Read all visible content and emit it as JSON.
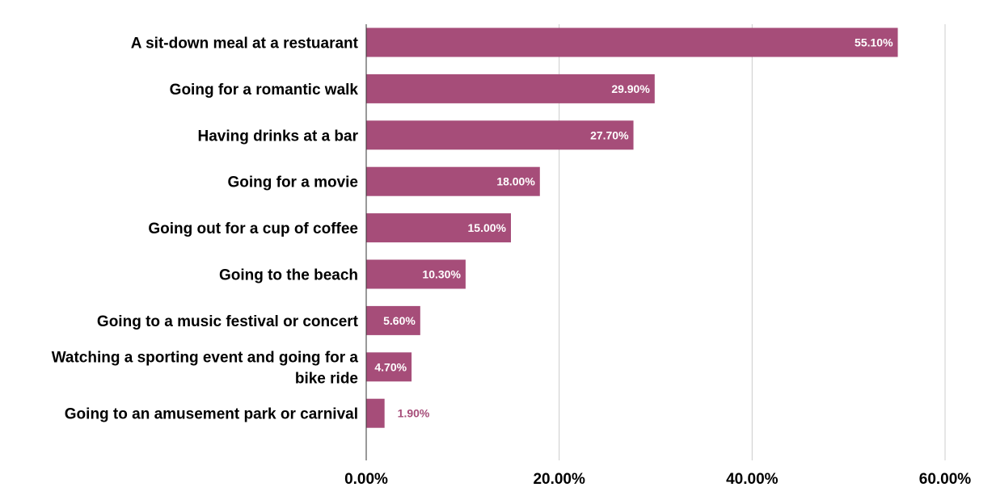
{
  "chart_data": {
    "type": "bar",
    "orientation": "horizontal",
    "categories": [
      "A sit-down meal at a restuarant",
      "Going for a romantic walk",
      "Having drinks at a bar",
      "Going for a movie",
      "Going out for a cup of coffee",
      "Going to the beach",
      "Going to a music festival or concert",
      "Watching a sporting event and going for a bike ride",
      "Going to an amusement park or carnival"
    ],
    "category_lines": [
      [
        "A sit-down meal at a restuarant"
      ],
      [
        "Going for a romantic walk"
      ],
      [
        "Having drinks at a bar"
      ],
      [
        "Going for a movie"
      ],
      [
        "Going out for a cup of coffee"
      ],
      [
        "Going to the beach"
      ],
      [
        "Going to a music festival or concert"
      ],
      [
        "Watching a sporting event and going for a",
        "bike ride"
      ],
      [
        "Going to an amusement park or carnival"
      ]
    ],
    "values": [
      55.1,
      29.9,
      27.7,
      18.0,
      15.0,
      10.3,
      5.6,
      4.7,
      1.9
    ],
    "value_labels": [
      "55.10%",
      "29.90%",
      "27.70%",
      "18.00%",
      "15.00%",
      "10.30%",
      "5.60%",
      "4.70%",
      "1.90%"
    ],
    "xlim": [
      0,
      60
    ],
    "x_ticks": [
      0,
      20,
      40,
      60
    ],
    "x_tick_labels": [
      "0.00%",
      "20.00%",
      "40.00%",
      "60.00%"
    ],
    "title": "",
    "xlabel": "",
    "ylabel": "",
    "grid": true,
    "legend": "none",
    "bar_color": "#a64d79",
    "label_inside_color": "#ffffff",
    "label_outside_color": "#a64d79",
    "grid_color": "#cccccc",
    "axis_color": "#333333",
    "text_color": "#000000"
  }
}
